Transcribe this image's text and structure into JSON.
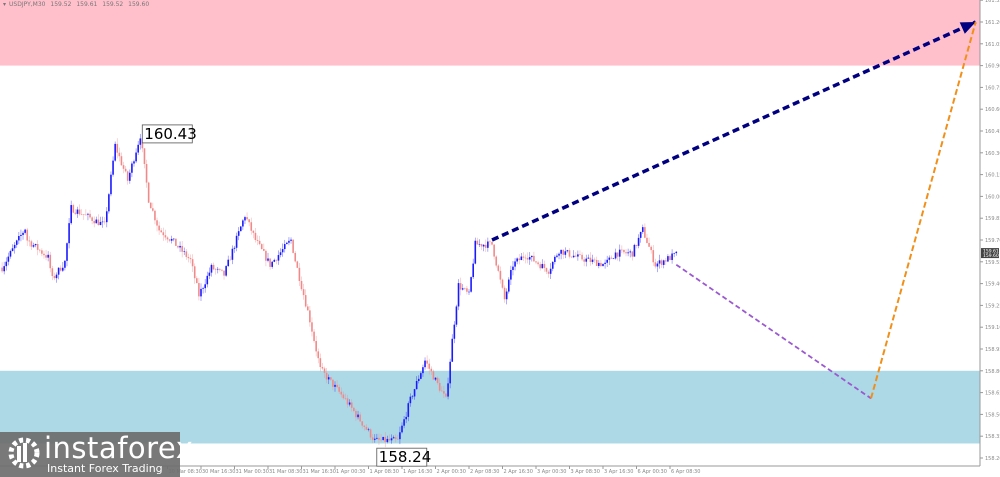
{
  "header": {
    "symbol": "USDJPY,M30",
    "open": "159.52",
    "high": "159.61",
    "low": "159.52",
    "close": "159.60"
  },
  "logo": {
    "brand": "instaforex",
    "tagline": "Instant Forex Trading"
  },
  "colors": {
    "bull": "#1a1aff",
    "bear": "#f08a8a",
    "resistance_zone": "#ffc0cb",
    "support_zone": "#add8e6",
    "forecast_up": "#000080",
    "forecast_down": "#9b59d0",
    "forecast_final": "#f0901a",
    "price_tag": "#444444"
  },
  "chart_data": {
    "type": "candlestick",
    "symbol": "USDJPY",
    "timeframe": "M30",
    "ylim": [
      158.15,
      161.38
    ],
    "y_ticks": [
      "161.35",
      "161.20",
      "161.05",
      "160.90",
      "160.75",
      "160.60",
      "160.45",
      "160.30",
      "160.15",
      "160.00",
      "159.85",
      "159.70",
      "159.55",
      "159.40",
      "159.25",
      "159.10",
      "158.95",
      "158.80",
      "158.65",
      "158.50",
      "158.35",
      "158.20"
    ],
    "x_ticks": [
      "30 Mar 08:30",
      "30 Mar 16:30",
      "31 Mar 00:30",
      "31 Mar 08:30",
      "31 Mar 16:30",
      "1 Apr 00:30",
      "1 Apr 08:30",
      "1 Apr 16:30",
      "2 Apr 00:30",
      "2 Apr 08:30",
      "2 Apr 16:30",
      "3 Apr 00:30",
      "3 Apr 08:30",
      "3 Apr 16:30",
      "6 Apr 00:30",
      "6 Apr 08:30"
    ],
    "price_path": [
      [
        "26 Mar 17:00",
        159.51
      ],
      [
        "26 Mar 22:30",
        159.78
      ],
      [
        "26 Mar 23:00",
        159.7
      ],
      [
        "27 Mar 04:00",
        159.58
      ],
      [
        "27 Mar 05:00",
        159.43
      ],
      [
        "27 Mar 08:00",
        159.55
      ],
      [
        "27 Mar 09:30",
        159.92
      ],
      [
        "27 Mar 17:30",
        159.8
      ],
      [
        "27 Mar 19:00",
        160.13
      ],
      [
        "27 Mar 20:00",
        160.35
      ],
      [
        "27 Mar 23:00",
        160.11
      ],
      [
        "30 Mar 02:00",
        160.42
      ],
      [
        "30 Mar 04:00",
        159.98
      ],
      [
        "30 Mar 06:30",
        159.77
      ],
      [
        "30 Mar 09:30",
        159.7
      ],
      [
        "30 Mar 14:00",
        159.56
      ],
      [
        "30 Mar 16:00",
        159.32
      ],
      [
        "30 Mar 19:00",
        159.51
      ],
      [
        "30 Mar 22:00",
        159.46
      ],
      [
        "31 Mar 03:00",
        159.87
      ],
      [
        "31 Mar 05:30",
        159.7
      ],
      [
        "31 Mar 09:00",
        159.53
      ],
      [
        "31 Mar 14:00",
        159.7
      ],
      [
        "31 Mar 15:00",
        159.56
      ],
      [
        "31 Mar 18:30",
        159.15
      ],
      [
        "31 Mar 21:00",
        158.81
      ],
      [
        "1 Apr 03:00",
        158.6
      ],
      [
        "1 Apr 10:00",
        158.32
      ],
      [
        "1 Apr 15:30",
        158.32
      ],
      [
        "1 Apr 18:30",
        158.6
      ],
      [
        "1 Apr 22:00",
        158.87
      ],
      [
        "2 Apr 03:00",
        158.6
      ],
      [
        "2 Apr 04:30",
        159.01
      ],
      [
        "2 Apr 06:00",
        159.39
      ],
      [
        "2 Apr 08:30",
        159.32
      ],
      [
        "2 Apr 10:00",
        159.67
      ],
      [
        "2 Apr 14:00",
        159.67
      ],
      [
        "2 Apr 17:00",
        159.29
      ],
      [
        "2 Apr 19:00",
        159.53
      ],
      [
        "2 Apr 22:00",
        159.6
      ],
      [
        "3 Apr 03:30",
        159.49
      ],
      [
        "3 Apr 06:00",
        159.63
      ],
      [
        "3 Apr 10:30",
        159.58
      ],
      [
        "3 Apr 17:00",
        159.53
      ],
      [
        "3 Apr 19:30",
        159.61
      ],
      [
        "3 Apr 23:30",
        159.61
      ],
      [
        "6 Apr 02:00",
        159.77
      ],
      [
        "6 Apr 05:00",
        159.53
      ],
      [
        "6 Apr 10:00",
        159.6
      ]
    ],
    "annotations": [
      {
        "label": "160.43",
        "time": "30 Mar 02:00",
        "price": 160.43
      },
      {
        "label": "158.24",
        "time": "1 Apr 10:00",
        "price": 158.24
      }
    ],
    "current_price": {
      "bid": "159.61",
      "ask": "159.60"
    },
    "zones": [
      {
        "kind": "resistance",
        "from": 160.9,
        "to": 161.4
      },
      {
        "kind": "support",
        "from": 158.3,
        "to": 158.8
      }
    ],
    "forecast": [
      {
        "kind": "up-wave",
        "from": [
          "2 Apr 14:00",
          159.7
        ],
        "to": [
          "9 Apr 09:30",
          161.2
        ]
      },
      {
        "kind": "down-wave",
        "from": [
          "6 Apr 10:00",
          159.53
        ],
        "to": [
          "8 Apr 08:30",
          158.61
        ]
      },
      {
        "kind": "final-up",
        "from": [
          "8 Apr 08:30",
          158.61
        ],
        "to": [
          "9 Apr 09:30",
          161.2
        ]
      }
    ]
  }
}
